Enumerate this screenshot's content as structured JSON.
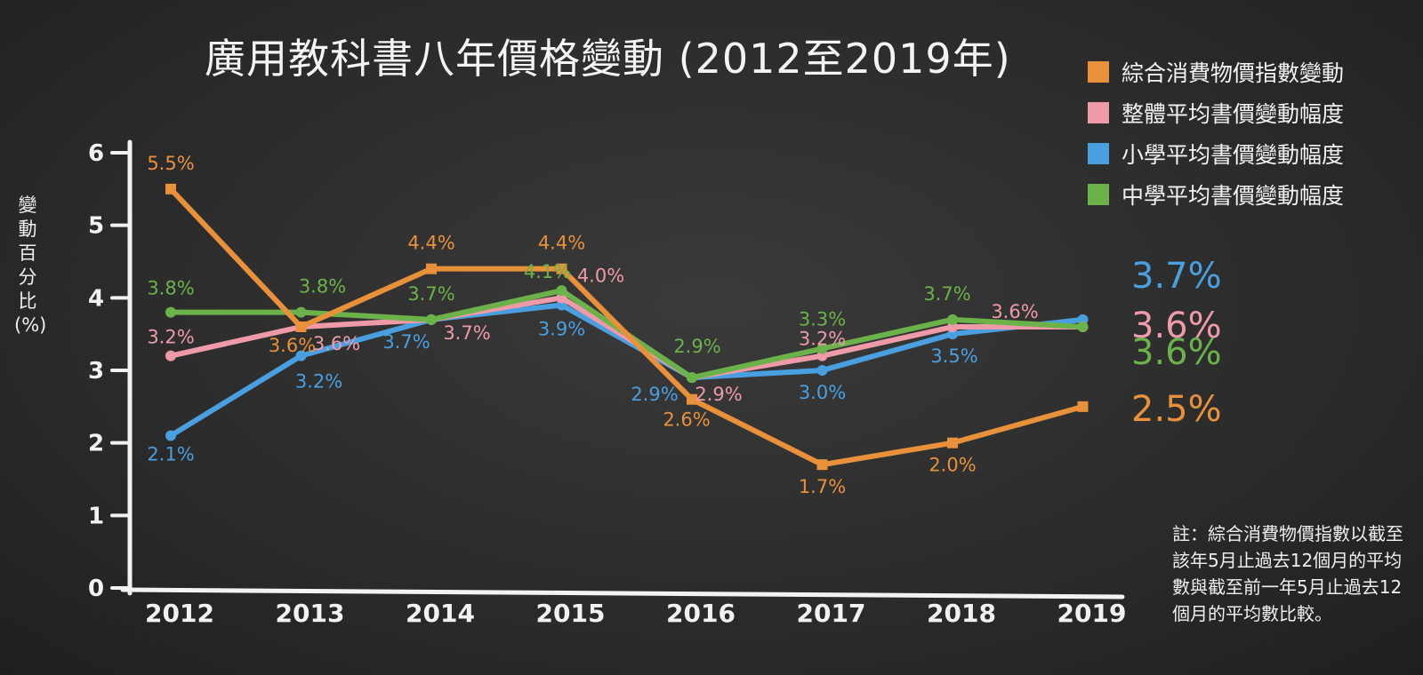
{
  "chart_data": {
    "type": "line",
    "title": "廣用教科書八年價格變動 (2012至2019年)",
    "ylabel": "變動百分比(%)",
    "xlabel": "",
    "ylim": [
      0,
      6
    ],
    "y_ticks": [
      "0",
      "1",
      "2",
      "3",
      "4",
      "5",
      "6"
    ],
    "categories": [
      "2012",
      "2013",
      "2014",
      "2015",
      "2016",
      "2017",
      "2018",
      "2019"
    ],
    "grid": false,
    "legend_position": "top-right",
    "series": [
      {
        "name": "綜合消費物價指數變動",
        "color": "#e8913a",
        "values": [
          5.5,
          3.6,
          4.4,
          4.4,
          2.6,
          1.7,
          2.0,
          2.5
        ],
        "labels": [
          "5.5%",
          "3.6%",
          "4.4%",
          "4.4%",
          "2.6%",
          "1.7%",
          "2.0%",
          ""
        ],
        "end_label": "2.5%"
      },
      {
        "name": "整體平均書價變動幅度",
        "color": "#ee9aa8",
        "values": [
          3.2,
          3.6,
          3.7,
          4.0,
          2.9,
          3.2,
          3.6,
          3.6
        ],
        "labels": [
          "3.2%",
          "3.6%",
          "3.7%",
          "4.0%",
          "2.9%",
          "3.2%",
          "3.6%",
          ""
        ],
        "end_label": "3.6%"
      },
      {
        "name": "小學平均書價變動幅度",
        "color": "#4a9fe0",
        "values": [
          2.1,
          3.2,
          3.7,
          3.9,
          2.9,
          3.0,
          3.5,
          3.7
        ],
        "labels": [
          "2.1%",
          "3.2%",
          "3.7%",
          "3.9%",
          "2.9%",
          "3.0%",
          "3.5%",
          ""
        ],
        "end_label": "3.7%"
      },
      {
        "name": "中學平均書價變動幅度",
        "color": "#6cb24a",
        "values": [
          3.8,
          3.8,
          3.7,
          4.1,
          2.9,
          3.3,
          3.7,
          3.6
        ],
        "labels": [
          "3.8%",
          "3.8%",
          "3.7%",
          "4.1%",
          "2.9%",
          "3.3%",
          "3.7%",
          ""
        ],
        "end_label": "3.6%"
      }
    ],
    "note": "註：綜合消費物價指數以截至該年5月止過去12個月的平均數與截至前一年5月止過去12個月的平均數比較。"
  }
}
